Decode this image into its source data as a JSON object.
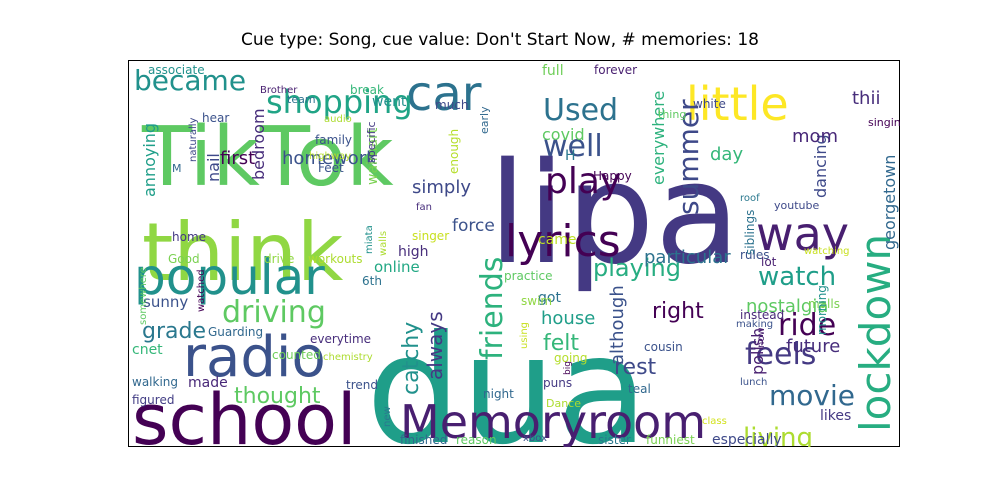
{
  "title": "Cue type: Song, cue value: Don't Start Now, # memories: 18",
  "chart_data": {
    "type": "wordcloud",
    "words": [
      {
        "text": "dua",
        "color": "#1f9e89"
      },
      {
        "text": "lipa",
        "color": "#443983"
      },
      {
        "text": "TikTok",
        "color": "#5ec962"
      },
      {
        "text": "think",
        "color": "#90d743"
      },
      {
        "text": "school",
        "color": "#440154"
      },
      {
        "text": "popular",
        "color": "#21918c"
      },
      {
        "text": "radio",
        "color": "#3b528b"
      },
      {
        "text": "Memoryroom",
        "color": "#481f70"
      },
      {
        "text": "little",
        "color": "#fde725"
      },
      {
        "text": "car",
        "color": "#2c728e"
      },
      {
        "text": "lyrics",
        "color": "#440154"
      },
      {
        "text": "lockdown",
        "color": "#27ad81"
      },
      {
        "text": "way",
        "color": "#481f70"
      },
      {
        "text": "shopping",
        "color": "#20a486"
      },
      {
        "text": "became",
        "color": "#21918c"
      },
      {
        "text": "driving",
        "color": "#5ec962"
      },
      {
        "text": "friends",
        "color": "#2db27d"
      },
      {
        "text": "Used",
        "color": "#2c728e"
      },
      {
        "text": "well",
        "color": "#3b528b"
      },
      {
        "text": "play",
        "color": "#440154"
      },
      {
        "text": "summer",
        "color": "#3e4989"
      },
      {
        "text": "watch",
        "color": "#1f9e89"
      },
      {
        "text": "feels",
        "color": "#443983"
      },
      {
        "text": "ride",
        "color": "#440154"
      },
      {
        "text": "movie",
        "color": "#31688e"
      },
      {
        "text": "living",
        "color": "#addc30"
      },
      {
        "text": "playing",
        "color": "#27ad81"
      },
      {
        "text": "grade",
        "color": "#2a788e"
      },
      {
        "text": "thought",
        "color": "#5ec962"
      },
      {
        "text": "catchy",
        "color": "#21918c"
      },
      {
        "text": "felt",
        "color": "#35b779"
      },
      {
        "text": "always",
        "color": "#443983"
      },
      {
        "text": "rest",
        "color": "#3e4989"
      },
      {
        "text": "although",
        "color": "#3b528b"
      },
      {
        "text": "house",
        "color": "#1f9e89"
      },
      {
        "text": "right",
        "color": "#440154"
      },
      {
        "text": "future",
        "color": "#472d7b"
      },
      {
        "text": "polish",
        "color": "#481f70"
      },
      {
        "text": "nostalgia",
        "color": "#5ec962"
      },
      {
        "text": "particular",
        "color": "#2c728e"
      },
      {
        "text": "georgetown",
        "color": "#31688e"
      },
      {
        "text": "dancing",
        "color": "#3e4989"
      },
      {
        "text": "mom",
        "color": "#482878"
      },
      {
        "text": "day",
        "color": "#35b779"
      },
      {
        "text": "thii",
        "color": "#472d7b"
      },
      {
        "text": "everywhere",
        "color": "#2db27d"
      },
      {
        "text": "covid",
        "color": "#5ec962"
      },
      {
        "text": "full",
        "color": "#6ece58"
      },
      {
        "text": "force",
        "color": "#3b528b"
      },
      {
        "text": "simply",
        "color": "#3e4989"
      },
      {
        "text": "first",
        "color": "#440154"
      },
      {
        "text": "homework",
        "color": "#3b528b"
      },
      {
        "text": "bedroom",
        "color": "#472d7b"
      },
      {
        "text": "walmart",
        "color": "#7ad151"
      },
      {
        "text": "went",
        "color": "#21918c"
      },
      {
        "text": "annoying",
        "color": "#1f9e89"
      },
      {
        "text": "nail",
        "color": "#3e4989"
      },
      {
        "text": "sunny",
        "color": "#3b528b"
      },
      {
        "text": "made",
        "color": "#482878"
      },
      {
        "text": "cnet",
        "color": "#35b779"
      },
      {
        "text": "online",
        "color": "#22a884"
      },
      {
        "text": "got",
        "color": "#2c728e"
      },
      {
        "text": "came",
        "color": "#bddf26"
      },
      {
        "text": "everytime",
        "color": "#472d7b"
      },
      {
        "text": "Guarding",
        "color": "#31688e"
      },
      {
        "text": "counted",
        "color": "#6ece58"
      },
      {
        "text": "chemistry",
        "color": "#addc30"
      },
      {
        "text": "trend",
        "color": "#3b528b"
      },
      {
        "text": "walking",
        "color": "#31688e"
      },
      {
        "text": "figured",
        "color": "#433e85"
      },
      {
        "text": "home",
        "color": "#443983"
      },
      {
        "text": "Good",
        "color": "#7ad151"
      },
      {
        "text": "drive",
        "color": "#90d743"
      },
      {
        "text": "workouts",
        "color": "#addc30"
      },
      {
        "text": "6th",
        "color": "#2c728e"
      },
      {
        "text": "high",
        "color": "#472d7b"
      },
      {
        "text": "singer",
        "color": "#c8e020"
      },
      {
        "text": "practice",
        "color": "#5ec962"
      },
      {
        "text": "swim",
        "color": "#90d743"
      },
      {
        "text": "using",
        "color": "#c8e020"
      },
      {
        "text": "big",
        "color": "#440154"
      },
      {
        "text": "going",
        "color": "#b5de2b"
      },
      {
        "text": "puns",
        "color": "#443983"
      },
      {
        "text": "night",
        "color": "#31688e"
      },
      {
        "text": "new",
        "color": "#2a788e"
      },
      {
        "text": "Dance",
        "color": "#addc30"
      },
      {
        "text": "finished",
        "color": "#31688e"
      },
      {
        "text": "reason",
        "color": "#5ec962"
      },
      {
        "text": "xbox",
        "color": "#3b528b"
      },
      {
        "text": "sister",
        "color": "#2a788e"
      },
      {
        "text": "funniest",
        "color": "#7ad151"
      },
      {
        "text": "especially",
        "color": "#3e4989"
      },
      {
        "text": "likes",
        "color": "#443983"
      },
      {
        "text": "class",
        "color": "#d2e21b"
      },
      {
        "text": "lunch",
        "color": "#3b528b"
      },
      {
        "text": "teal",
        "color": "#31688e"
      },
      {
        "text": "cousin",
        "color": "#3b528b"
      },
      {
        "text": "instead",
        "color": "#482878"
      },
      {
        "text": "now",
        "color": "#481f70"
      },
      {
        "text": "lot",
        "color": "#481f70"
      },
      {
        "text": "rules",
        "color": "#3b528b"
      },
      {
        "text": "malls",
        "color": "#7ad151"
      },
      {
        "text": "making",
        "color": "#3b528b"
      },
      {
        "text": "morning",
        "color": "#21918c"
      },
      {
        "text": "watching",
        "color": "#c8e020"
      },
      {
        "text": "siblings",
        "color": "#2c728e"
      },
      {
        "text": "youtube",
        "color": "#3e4989"
      },
      {
        "text": "roof",
        "color": "#2a788e"
      },
      {
        "text": "Happy",
        "color": "#440154"
      },
      {
        "text": "H",
        "color": "#2a788e"
      },
      {
        "text": "white",
        "color": "#3e4989"
      },
      {
        "text": "singing",
        "color": "#440154"
      },
      {
        "text": "thing",
        "color": "#5ec962"
      },
      {
        "text": "forever",
        "color": "#481f70"
      },
      {
        "text": "early",
        "color": "#31688e"
      },
      {
        "text": "enough",
        "color": "#b5de2b"
      },
      {
        "text": "much",
        "color": "#3e4989"
      },
      {
        "text": "specific",
        "color": "#443983"
      },
      {
        "text": "break",
        "color": "#35b779"
      },
      {
        "text": "audio",
        "color": "#addc30"
      },
      {
        "text": "Brother",
        "color": "#481f70"
      },
      {
        "text": "team",
        "color": "#2c728e"
      },
      {
        "text": "associate",
        "color": "#21918c"
      },
      {
        "text": "hear",
        "color": "#3b528b"
      },
      {
        "text": "naturally",
        "color": "#3e4989"
      },
      {
        "text": "family",
        "color": "#3b528b"
      },
      {
        "text": "highway",
        "color": "#b5de2b"
      },
      {
        "text": "Feet",
        "color": "#3b528b"
      },
      {
        "text": "M",
        "color": "#31688e"
      },
      {
        "text": "somewhere",
        "color": "#5ec962"
      },
      {
        "text": "watched",
        "color": "#440154"
      },
      {
        "text": "miata",
        "color": "#21918c"
      },
      {
        "text": "walls",
        "color": "#addc30"
      },
      {
        "text": "fan",
        "color": "#472d7b"
      }
    ]
  }
}
